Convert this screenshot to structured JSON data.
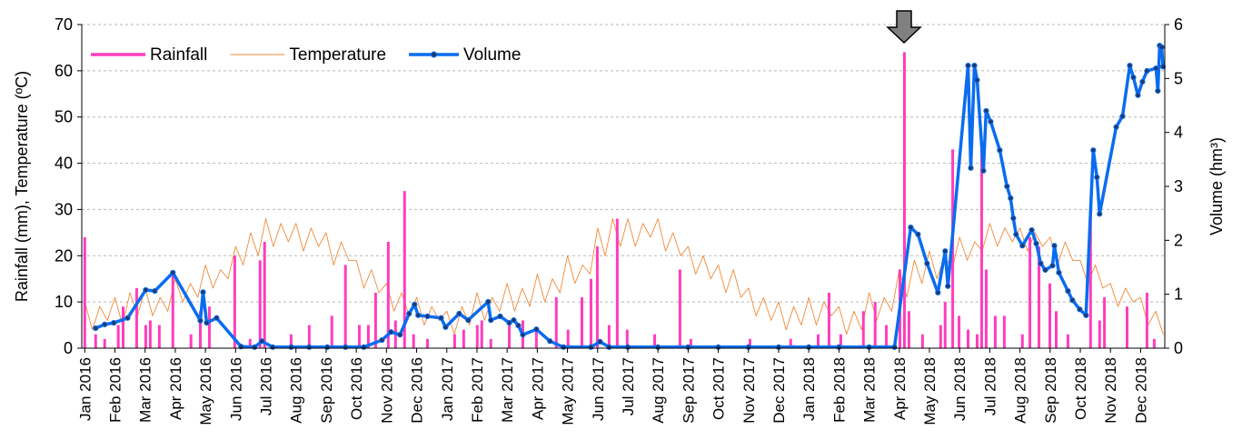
{
  "chart_data": {
    "type": "combo",
    "y_label": "Rainfall (mm),  Temperature (ºC)",
    "y2_label": "Volume (hm³)",
    "xlim": [
      -0.1,
      35.8
    ],
    "xticks": [
      {
        "value": 0,
        "label": "Jan 2016"
      },
      {
        "value": 1,
        "label": "Feb 2016"
      },
      {
        "value": 2,
        "label": "Mar 2016"
      },
      {
        "value": 3,
        "label": "Apr 2016"
      },
      {
        "value": 4,
        "label": "May 2016"
      },
      {
        "value": 5,
        "label": "Jun 2016"
      },
      {
        "value": 6,
        "label": "Jul 2016"
      },
      {
        "value": 7,
        "label": "Aug 2016"
      },
      {
        "value": 8,
        "label": "Sep 2016"
      },
      {
        "value": 9,
        "label": "Oct 2016"
      },
      {
        "value": 10,
        "label": "Nov 2016"
      },
      {
        "value": 11,
        "label": "Dec 2016"
      },
      {
        "value": 12,
        "label": "Jan 2017"
      },
      {
        "value": 13,
        "label": "Feb 2017"
      },
      {
        "value": 14,
        "label": "Mar 2017"
      },
      {
        "value": 15,
        "label": "Apr 2017"
      },
      {
        "value": 16,
        "label": "May 2017"
      },
      {
        "value": 17,
        "label": "Jun 2017"
      },
      {
        "value": 18,
        "label": "Jul 2017"
      },
      {
        "value": 19,
        "label": "Aug 2017"
      },
      {
        "value": 20,
        "label": "Sep 2017"
      },
      {
        "value": 21,
        "label": "Oct 2017"
      },
      {
        "value": 22,
        "label": "Nov 2017"
      },
      {
        "value": 23,
        "label": "Dec 2017"
      },
      {
        "value": 24,
        "label": "Jan 2018"
      },
      {
        "value": 25,
        "label": "Feb 2018"
      },
      {
        "value": 26,
        "label": "Mar 2018"
      },
      {
        "value": 27,
        "label": "Apr 2018"
      },
      {
        "value": 28,
        "label": "May 2018"
      },
      {
        "value": 29,
        "label": "Jun 2018"
      },
      {
        "value": 30,
        "label": "Jul 2018"
      },
      {
        "value": 31,
        "label": "Aug 2018"
      },
      {
        "value": 32,
        "label": "Sep 2018"
      },
      {
        "value": 33,
        "label": "Oct 2018"
      },
      {
        "value": 34,
        "label": "Nov 2018"
      },
      {
        "value": 35,
        "label": "Dec 2018"
      }
    ],
    "ylim": [
      0,
      70
    ],
    "yticks": [
      0,
      10,
      20,
      30,
      40,
      50,
      60,
      70
    ],
    "y2lim": [
      0,
      6
    ],
    "y2ticks": [
      0,
      1,
      2,
      3,
      4,
      5,
      6
    ],
    "grid": true,
    "legend": "upper left",
    "series": [
      {
        "name": "Rainfall",
        "type": "bar",
        "color": "#ff3dbe",
        "x": [
          0.0,
          0.36,
          0.66,
          1.11,
          1.27,
          1.72,
          2.02,
          2.17,
          2.47,
          2.92,
          3.52,
          3.83,
          4.13,
          4.97,
          5.48,
          5.81,
          5.96,
          6.84,
          7.44,
          8.19,
          8.64,
          9.1,
          9.4,
          9.64,
          10.06,
          10.3,
          10.6,
          10.9,
          11.36,
          12.26,
          12.56,
          13.01,
          13.16,
          13.46,
          14.07,
          14.52,
          14.97,
          15.63,
          16.02,
          16.48,
          16.78,
          16.99,
          17.38,
          17.65,
          17.98,
          18.89,
          19.73,
          20.09,
          22.05,
          23.4,
          24.31,
          24.67,
          25.06,
          25.81,
          26.2,
          26.57,
          27.02,
          27.17,
          27.32,
          27.77,
          28.37,
          28.52,
          28.77,
          28.98,
          29.28,
          29.58,
          29.73,
          29.88,
          30.18,
          30.48,
          31.08,
          31.33,
          31.63,
          31.99,
          32.2,
          32.59,
          33.34,
          33.64,
          33.8,
          34.55,
          35.21,
          35.45
        ],
        "values": [
          24,
          3,
          2,
          5,
          9,
          13,
          5,
          6,
          5,
          16,
          3,
          8,
          9,
          20,
          2,
          19,
          23,
          3,
          5,
          7,
          18,
          5,
          5,
          12,
          23,
          6,
          34,
          3,
          2,
          3,
          4,
          5,
          6,
          2,
          5,
          6,
          4,
          11,
          4,
          11,
          15,
          22,
          5,
          28,
          4,
          3,
          17,
          2,
          2,
          2,
          3,
          12,
          3,
          8,
          10,
          5,
          17,
          64,
          8,
          3,
          5,
          10,
          43,
          7,
          4,
          3,
          43,
          17,
          7,
          7,
          3,
          24,
          22,
          14,
          8,
          3,
          30,
          6,
          11,
          9,
          12,
          2
        ]
      },
      {
        "name": "Temperature",
        "type": "line",
        "color": "#f08a3a",
        "x": [
          0,
          0.25,
          0.5,
          0.75,
          1,
          1.25,
          1.5,
          1.75,
          2,
          2.25,
          2.5,
          2.75,
          3,
          3.25,
          3.5,
          3.75,
          4,
          4.25,
          4.5,
          4.75,
          5,
          5.25,
          5.5,
          5.75,
          6,
          6.25,
          6.5,
          6.75,
          7,
          7.25,
          7.5,
          7.75,
          8,
          8.25,
          8.5,
          8.75,
          9,
          9.25,
          9.5,
          9.75,
          10,
          10.25,
          10.5,
          10.75,
          11,
          11.25,
          11.5,
          11.75,
          12,
          12.25,
          12.5,
          12.75,
          13,
          13.25,
          13.5,
          13.75,
          14,
          14.25,
          14.5,
          14.75,
          15,
          15.25,
          15.5,
          15.75,
          16,
          16.25,
          16.5,
          16.75,
          17,
          17.25,
          17.5,
          17.75,
          18,
          18.25,
          18.5,
          18.75,
          19,
          19.25,
          19.5,
          19.75,
          20,
          20.25,
          20.5,
          20.75,
          21,
          21.25,
          21.5,
          21.75,
          22,
          22.25,
          22.5,
          22.75,
          23,
          23.25,
          23.5,
          23.75,
          24,
          24.25,
          24.5,
          24.75,
          25,
          25.25,
          25.5,
          25.75,
          26,
          26.25,
          26.5,
          26.75,
          27,
          27.25,
          27.5,
          27.75,
          28,
          28.25,
          28.5,
          28.75,
          29,
          29.25,
          29.5,
          29.75,
          30,
          30.25,
          30.5,
          30.75,
          31,
          31.25,
          31.5,
          31.75,
          32,
          32.25,
          32.5,
          32.75,
          33,
          33.25,
          33.5,
          33.75,
          34,
          34.25,
          34.5,
          34.75,
          35,
          35.25,
          35.5,
          35.75
        ],
        "values": [
          10,
          4,
          9,
          6,
          11,
          5,
          12,
          7,
          13,
          7,
          11,
          8,
          15,
          10,
          14,
          11,
          18,
          13,
          17,
          15,
          22,
          18,
          25,
          20,
          28,
          22,
          27,
          23,
          27,
          21,
          26,
          22,
          25,
          18,
          23,
          19,
          19,
          13,
          17,
          12,
          14,
          8,
          12,
          7,
          11,
          5,
          9,
          6,
          8,
          3,
          9,
          5,
          12,
          6,
          11,
          8,
          14,
          8,
          13,
          9,
          16,
          10,
          15,
          12,
          20,
          14,
          18,
          16,
          26,
          20,
          28,
          22,
          28,
          22,
          27,
          24,
          28,
          21,
          25,
          20,
          22,
          16,
          20,
          15,
          18,
          12,
          17,
          11,
          13,
          7,
          11,
          6,
          10,
          4,
          9,
          5,
          11,
          5,
          10,
          7,
          9,
          3,
          8,
          4,
          12,
          6,
          11,
          8,
          17,
          11,
          19,
          14,
          21,
          15,
          20,
          17,
          24,
          19,
          23,
          21,
          27,
          22,
          26,
          23,
          26,
          21,
          25,
          22,
          24,
          18,
          23,
          19,
          19,
          14,
          18,
          13,
          14,
          9,
          13,
          10,
          11,
          5,
          8,
          3
        ]
      },
      {
        "name": "Volume",
        "type": "line",
        "markers": true,
        "axis": "y2",
        "color": "#0a6cf0",
        "x": [
          0.36,
          0.66,
          0.96,
          1.42,
          2.02,
          2.32,
          2.92,
          3.83,
          3.92,
          4.04,
          4.37,
          5.18,
          5.63,
          5.87,
          6.23,
          6.84,
          7.44,
          8.04,
          8.64,
          9.25,
          9.85,
          10.15,
          10.45,
          10.75,
          10.93,
          11.05,
          11.36,
          11.81,
          11.96,
          12.41,
          12.71,
          13.37,
          13.46,
          13.77,
          14.07,
          14.22,
          14.37,
          14.52,
          14.97,
          15.42,
          15.87,
          16.78,
          17.08,
          17.38,
          18,
          19,
          20,
          21,
          22,
          23,
          24,
          25,
          26,
          26.84,
          27.38,
          27.62,
          27.92,
          28.28,
          28.52,
          28.61,
          29.28,
          29.37,
          29.49,
          29.58,
          29.79,
          29.88,
          30.03,
          30.33,
          30.57,
          30.69,
          30.78,
          30.87,
          31.08,
          31.39,
          31.54,
          31.69,
          31.84,
          32.08,
          32.14,
          32.29,
          32.59,
          32.74,
          32.98,
          33.19,
          33.43,
          33.55,
          33.64,
          34.19,
          34.4,
          34.64,
          34.76,
          34.91,
          35.06,
          35.21,
          35.51,
          35.57,
          35.63,
          35.7,
          35.74
        ],
        "values": [
          0.37,
          0.44,
          0.47,
          0.56,
          1.08,
          1.06,
          1.4,
          0.51,
          1.04,
          0.47,
          0.56,
          0.03,
          0.02,
          0.13,
          0.02,
          0.02,
          0.02,
          0.02,
          0.02,
          0.02,
          0.15,
          0.3,
          0.25,
          0.64,
          0.81,
          0.61,
          0.59,
          0.56,
          0.39,
          0.64,
          0.52,
          0.86,
          0.52,
          0.59,
          0.47,
          0.52,
          0.42,
          0.25,
          0.35,
          0.13,
          0.02,
          0.02,
          0.12,
          0.02,
          0.02,
          0.02,
          0.02,
          0.02,
          0.02,
          0.02,
          0.02,
          0.02,
          0.02,
          0.02,
          2.24,
          2.11,
          1.57,
          1.03,
          1.8,
          1.15,
          5.24,
          3.34,
          5.24,
          4.97,
          3.29,
          4.4,
          4.2,
          3.67,
          3.0,
          2.78,
          2.41,
          2.11,
          1.9,
          2.19,
          1.94,
          1.57,
          1.45,
          1.53,
          1.9,
          1.4,
          1.06,
          0.89,
          0.72,
          0.61,
          3.67,
          3.17,
          2.49,
          4.1,
          4.3,
          5.24,
          5.02,
          4.69,
          4.94,
          5.14,
          5.19,
          4.77,
          5.61,
          5.58,
          5.22
        ]
      }
    ]
  }
}
